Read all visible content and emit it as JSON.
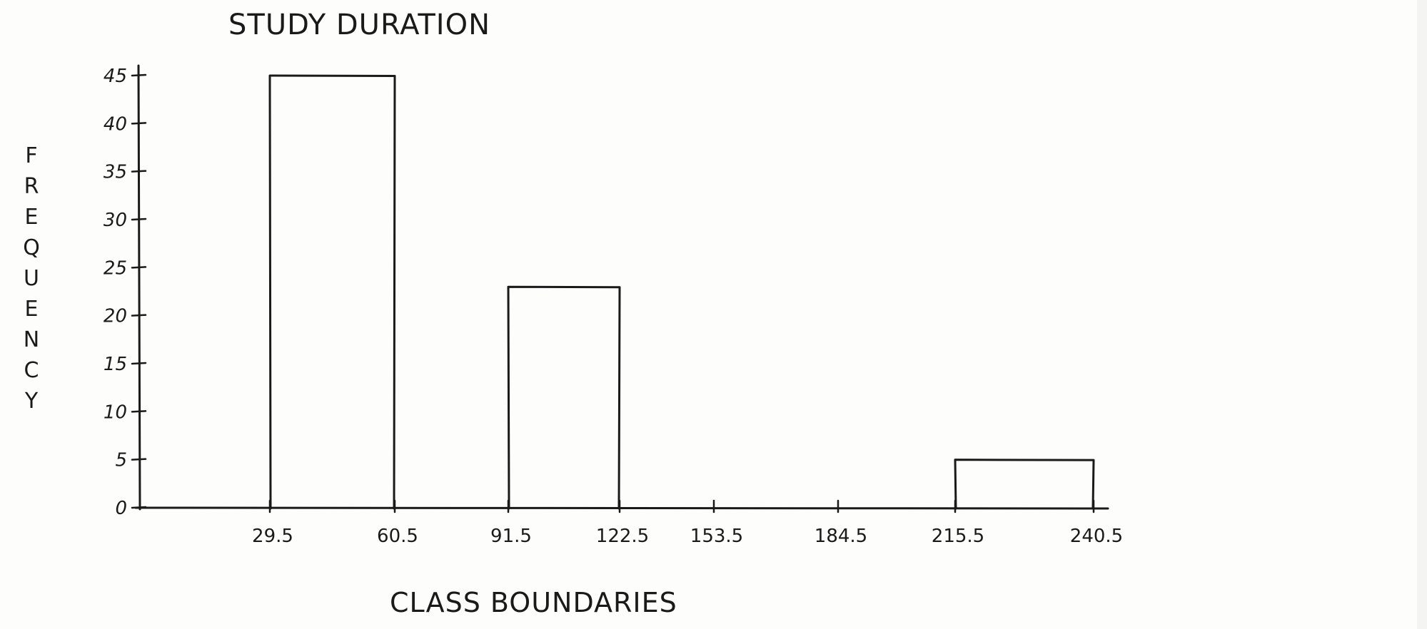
{
  "chart_data": {
    "type": "bar",
    "title": "STUDY DURATION",
    "xlabel": "CLASS BOUNDARIES",
    "ylabel": "FREQUENCY",
    "x_ticks": [
      "29.5",
      "60.5",
      "91.5",
      "122.5",
      "153.5",
      "184.5",
      "215.5",
      "240.5"
    ],
    "y_ticks": [
      "0",
      "5",
      "10",
      "15",
      "20",
      "25",
      "30",
      "35",
      "40",
      "45"
    ],
    "ylim": [
      0,
      45
    ],
    "grid": false,
    "legend": "none",
    "bars": [
      {
        "from": "29.5",
        "to": "60.5",
        "value": 45
      },
      {
        "from": "91.5",
        "to": "122.5",
        "value": 23
      },
      {
        "from": "215.5",
        "to": "240.5",
        "value": 5
      }
    ]
  },
  "colors": {
    "ink": "#1a1a1a",
    "paper": "#fdfdfc"
  }
}
